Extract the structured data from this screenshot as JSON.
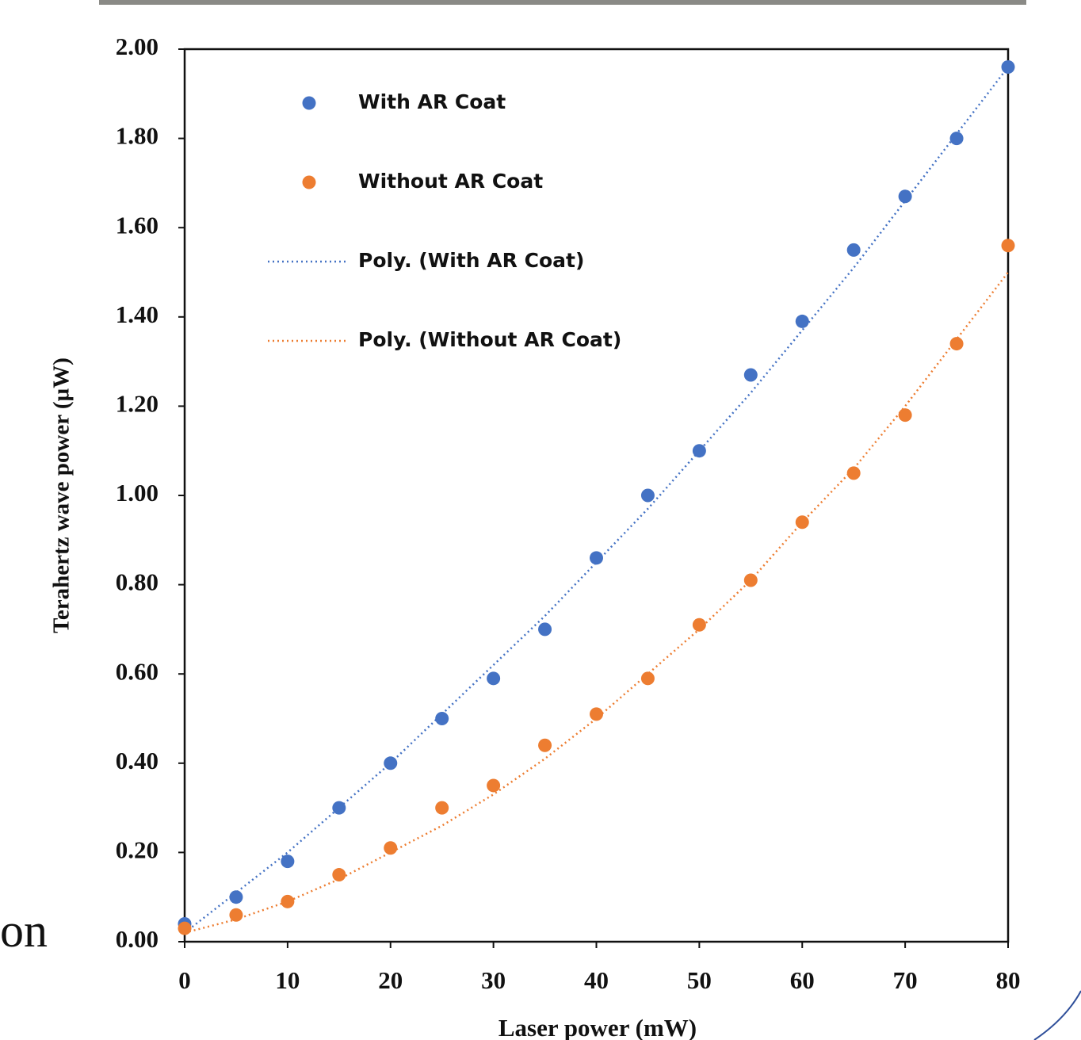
{
  "chart_data": {
    "type": "scatter",
    "fragment_text": "on",
    "x_label": "Laser power (mW)",
    "y_label": "Terahertz  wave power (µW)",
    "x": [
      0,
      5,
      10,
      15,
      20,
      25,
      30,
      35,
      40,
      45,
      50,
      55,
      60,
      65,
      70,
      75,
      80
    ],
    "series": [
      {
        "name": "With AR Coat",
        "color": "#4472c4",
        "style": "markers",
        "values": [
          0.04,
          0.1,
          0.18,
          0.3,
          0.4,
          0.5,
          0.59,
          0.7,
          0.86,
          1.0,
          1.1,
          1.27,
          1.39,
          1.55,
          1.67,
          1.8,
          1.96
        ]
      },
      {
        "name": "Without AR Coat",
        "color": "#ed7d31",
        "style": "markers",
        "values": [
          0.03,
          0.06,
          0.09,
          0.15,
          0.21,
          0.3,
          0.35,
          0.44,
          0.51,
          0.59,
          0.71,
          0.81,
          0.94,
          1.05,
          1.18,
          1.34,
          1.56
        ]
      },
      {
        "name": "Poly. (With AR Coat)",
        "color": "#4472c4",
        "style": "dotted",
        "values": [
          0.02,
          0.11,
          0.2,
          0.3,
          0.4,
          0.51,
          0.62,
          0.73,
          0.85,
          0.97,
          1.1,
          1.23,
          1.37,
          1.51,
          1.66,
          1.81,
          1.96
        ]
      },
      {
        "name": "Poly. (Without AR Coat)",
        "color": "#ed7d31",
        "style": "dotted",
        "values": [
          0.02,
          0.05,
          0.09,
          0.14,
          0.2,
          0.26,
          0.33,
          0.41,
          0.5,
          0.6,
          0.7,
          0.81,
          0.94,
          1.06,
          1.2,
          1.35,
          1.5
        ]
      }
    ],
    "xlim": [
      0,
      80
    ],
    "xticks": [
      0,
      10,
      20,
      30,
      40,
      50,
      60,
      70,
      80
    ],
    "ylim": [
      0,
      2
    ],
    "yticks": [
      {
        "value": 0,
        "label": "0.00"
      },
      {
        "value": 0.2,
        "label": "0.20"
      },
      {
        "value": 0.4,
        "label": "0.40"
      },
      {
        "value": 0.6,
        "label": "0.60"
      },
      {
        "value": 0.8,
        "label": "0.80"
      },
      {
        "value": 1,
        "label": "1.00"
      },
      {
        "value": 1.2,
        "label": "1.20"
      },
      {
        "value": 1.4,
        "label": "1.40"
      },
      {
        "value": 1.6,
        "label": "1.60"
      },
      {
        "value": 1.8,
        "label": "1.80"
      },
      {
        "value": 2,
        "label": "2.00"
      }
    ],
    "grid": false,
    "legend": "top-left"
  }
}
